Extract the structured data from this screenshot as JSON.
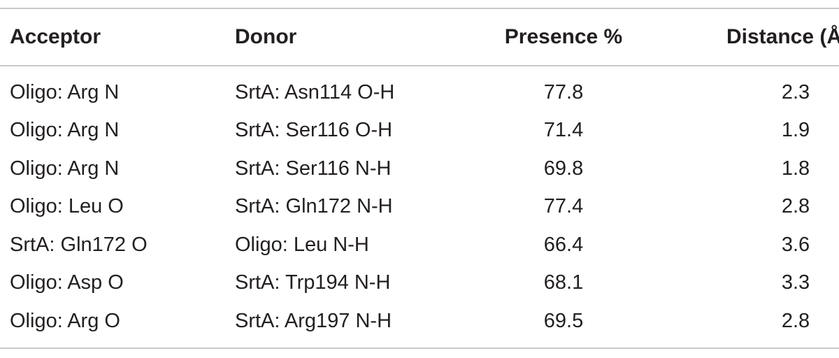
{
  "table": {
    "headers": {
      "acceptor": "Acceptor",
      "donor": "Donor",
      "presence": "Presence %",
      "distance": "Distance (Å)"
    },
    "rows": [
      {
        "acceptor": "Oligo: Arg N",
        "donor": "SrtA: Asn114 O-H",
        "presence": "77.8",
        "distance": "2.3"
      },
      {
        "acceptor": "Oligo: Arg N",
        "donor": "SrtA: Ser116 O-H",
        "presence": "71.4",
        "distance": "1.9"
      },
      {
        "acceptor": "Oligo: Arg N",
        "donor": "SrtA: Ser116 N-H",
        "presence": "69.8",
        "distance": "1.8"
      },
      {
        "acceptor": "Oligo: Leu O",
        "donor": "SrtA: Gln172 N-H",
        "presence": "77.4",
        "distance": "2.8"
      },
      {
        "acceptor": "SrtA: Gln172 O",
        "donor": "Oligo: Leu N-H",
        "presence": "66.4",
        "distance": "3.6"
      },
      {
        "acceptor": "Oligo: Asp O",
        "donor": "SrtA: Trp194 N-H",
        "presence": "68.1",
        "distance": "3.3"
      },
      {
        "acceptor": "Oligo: Arg O",
        "donor": "SrtA: Arg197 N-H",
        "presence": "69.5",
        "distance": "2.8"
      }
    ]
  }
}
